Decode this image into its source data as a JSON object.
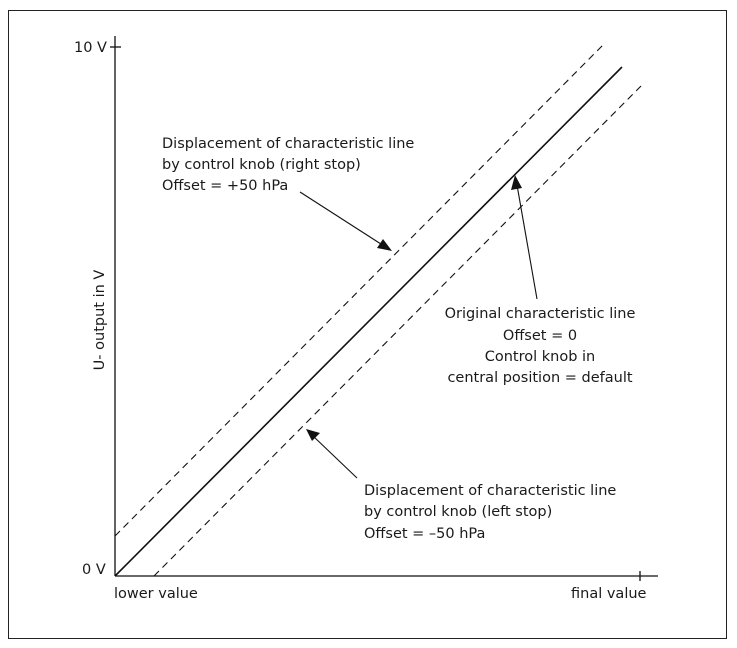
{
  "axes": {
    "y_axis_label": "U- output in V",
    "y_top_tick": "10 V",
    "y_bottom_tick": "0 V",
    "x_left_tick": "lower value",
    "x_right_tick": "final value"
  },
  "annotations": {
    "right_stop": [
      "Displacement of characteristic line",
      "by control knob (right stop)",
      "Offset =  +50 hPa"
    ],
    "original": [
      "Original characteristic line",
      "Offset = 0",
      "Control knob in",
      "central position = default"
    ],
    "left_stop": [
      "Displacement of characteristic line",
      "by control knob (left stop)",
      "Offset =  –50 hPa"
    ]
  },
  "style": {
    "line_color": "#111111",
    "text_color": "#1a1a1a"
  }
}
